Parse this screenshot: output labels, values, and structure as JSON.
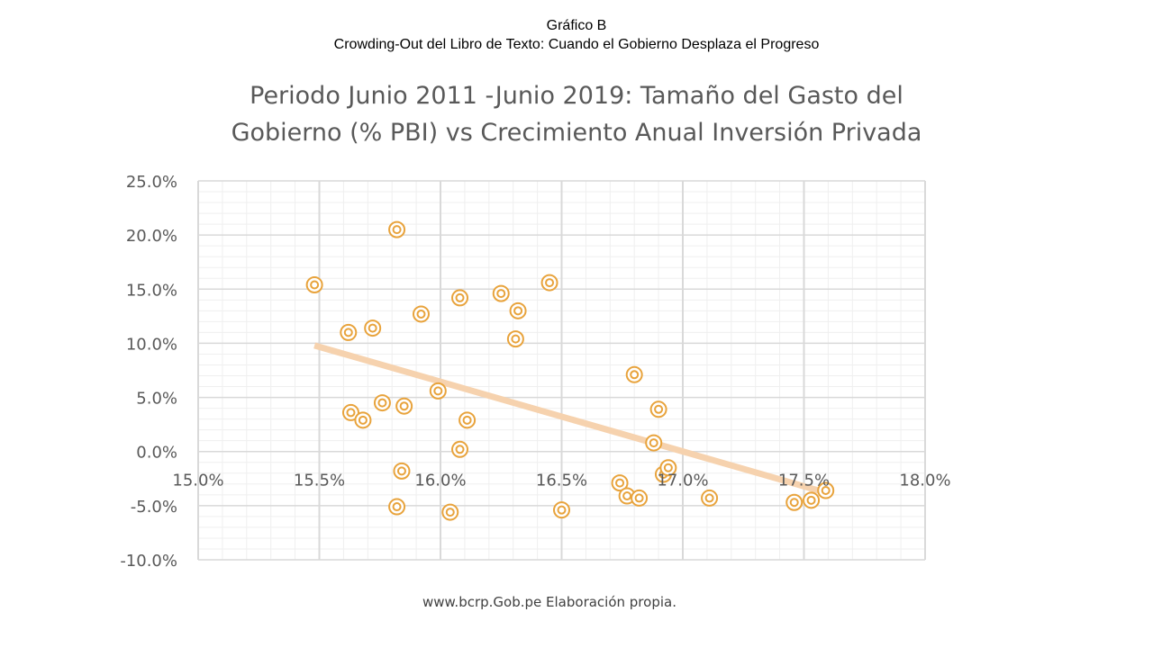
{
  "header": {
    "line1": "Gráfico B",
    "line2": "Crowding-Out del Libro de Texto: Cuando el Gobierno Desplaza el Progreso"
  },
  "footer": {
    "source": "www.bcrp.Gob.pe  Elaboración propia."
  },
  "colors": {
    "marker": "#E8A33C",
    "trendline": "#F6D2AE",
    "major_grid": "#D9D9D9",
    "minor_grid": "#EFEFEF",
    "text": "#595959"
  },
  "chart_data": {
    "type": "scatter",
    "title_lines": [
      "Periodo Junio 2011 -Junio 2019: Tamaño del Gasto del",
      "Gobierno (% PBI)  vs Crecimiento Anual Inversión Privada"
    ],
    "xlabel": "",
    "ylabel": "",
    "xlim": [
      15.0,
      18.0
    ],
    "ylim": [
      -10.0,
      25.0
    ],
    "x_ticks": [
      "15.0%",
      "15.5%",
      "16.0%",
      "16.5%",
      "17.0%",
      "17.5%",
      "18.0%"
    ],
    "x_tick_values": [
      15.0,
      15.5,
      16.0,
      16.5,
      17.0,
      17.5,
      18.0
    ],
    "y_ticks": [
      "25.0%",
      "20.0%",
      "15.0%",
      "10.0%",
      "5.0%",
      "0.0%",
      "-5.0%",
      "-10.0%"
    ],
    "y_tick_values": [
      25.0,
      20.0,
      15.0,
      10.0,
      5.0,
      0.0,
      -5.0,
      -10.0
    ],
    "grid": true,
    "marker": "double-circle",
    "points": [
      {
        "x": 15.48,
        "y": 15.4
      },
      {
        "x": 15.62,
        "y": 11.0
      },
      {
        "x": 15.63,
        "y": 3.6
      },
      {
        "x": 15.68,
        "y": 2.9
      },
      {
        "x": 15.72,
        "y": 11.4
      },
      {
        "x": 15.76,
        "y": 4.5
      },
      {
        "x": 15.82,
        "y": 20.5
      },
      {
        "x": 15.82,
        "y": -5.1
      },
      {
        "x": 15.84,
        "y": -1.8
      },
      {
        "x": 15.85,
        "y": 4.2
      },
      {
        "x": 15.92,
        "y": 12.7
      },
      {
        "x": 15.99,
        "y": 5.6
      },
      {
        "x": 16.04,
        "y": -5.6
      },
      {
        "x": 16.08,
        "y": 14.2
      },
      {
        "x": 16.08,
        "y": 0.2
      },
      {
        "x": 16.11,
        "y": 2.9
      },
      {
        "x": 16.25,
        "y": 14.6
      },
      {
        "x": 16.31,
        "y": 10.4
      },
      {
        "x": 16.32,
        "y": 13.0
      },
      {
        "x": 16.45,
        "y": 15.6
      },
      {
        "x": 16.5,
        "y": -5.4
      },
      {
        "x": 16.74,
        "y": -2.9
      },
      {
        "x": 16.77,
        "y": -4.1
      },
      {
        "x": 16.8,
        "y": 7.1
      },
      {
        "x": 16.82,
        "y": -4.3
      },
      {
        "x": 16.88,
        "y": 0.8
      },
      {
        "x": 16.9,
        "y": 3.9
      },
      {
        "x": 16.92,
        "y": -2.1
      },
      {
        "x": 16.94,
        "y": -1.5
      },
      {
        "x": 17.11,
        "y": -4.3
      },
      {
        "x": 17.46,
        "y": -4.7
      },
      {
        "x": 17.53,
        "y": -4.5
      },
      {
        "x": 17.59,
        "y": -3.6
      }
    ],
    "trendline": {
      "type": "linear",
      "x": [
        15.48,
        17.56
      ],
      "y": [
        9.8,
        -3.6
      ]
    }
  }
}
